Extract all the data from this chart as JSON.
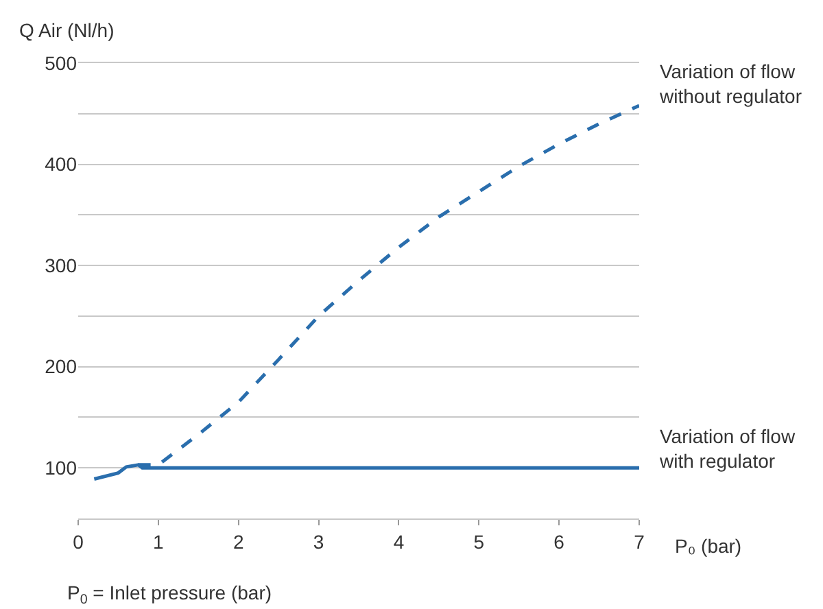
{
  "chart_data": {
    "type": "line",
    "ylabel": "Q Air (Nl/h)",
    "xlabel": "P₀ (bar)",
    "xlim": [
      0,
      7
    ],
    "xticks": [
      0,
      1,
      2,
      3,
      4,
      5,
      6,
      7
    ],
    "ylim": [
      50,
      500
    ],
    "yticks": [
      {
        "value": 50,
        "label": null
      },
      100,
      {
        "value": 150,
        "label": null
      },
      200,
      {
        "value": 250,
        "label": null
      },
      300,
      {
        "value": 350,
        "label": null
      },
      400,
      {
        "value": 450,
        "label": null
      },
      500
    ],
    "grid": "y",
    "legend": false,
    "marker": "none",
    "series": [
      {
        "color": "#2a6ead",
        "line_style": "dashed",
        "x": [
          0.75,
          1.0,
          1.5,
          2.0,
          2.5,
          3.0,
          3.5,
          4.0,
          4.5,
          5.0,
          5.5,
          6.0,
          6.5,
          7.0
        ],
        "values": [
          103,
          103,
          133,
          165,
          207,
          250,
          285,
          318,
          348,
          373,
          398,
          420,
          440,
          458
        ]
      },
      {
        "color": "#2a6ead",
        "line_style": "solid",
        "x": [
          0.2,
          0.5,
          0.6,
          0.75,
          0.8,
          1.0,
          7.0
        ],
        "values": [
          89,
          95,
          101,
          103,
          100,
          100,
          100
        ]
      }
    ],
    "annotations": [
      "Variation of flow\nwithout regulator",
      "Variation of flow\nwith regulator",
      "P$_{0}$ = Inlet pressure (bar)"
    ]
  }
}
